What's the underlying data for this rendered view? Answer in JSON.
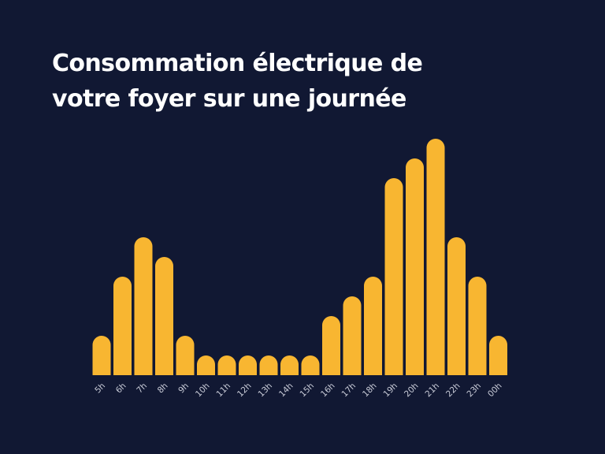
{
  "title_lines": [
    "Consommation électrique de",
    "votre foyer sur une journée"
  ],
  "colors": {
    "background": "#111833",
    "bar": "#F8B631",
    "title": "#ffffff",
    "tick_label": "#c9ccd8"
  },
  "chart_data": {
    "type": "bar",
    "title": "Consommation électrique de votre foyer sur une journée",
    "xlabel": "",
    "ylabel": "",
    "grid": false,
    "categories": [
      "5h",
      "6h",
      "7h",
      "8h",
      "9h",
      "10h",
      "11h",
      "12h",
      "13h",
      "14h",
      "15h",
      "16h",
      "17h",
      "18h",
      "19h",
      "20h",
      "21h",
      "22h",
      "23h",
      "00h"
    ],
    "values": [
      2,
      5,
      7,
      6,
      2,
      1,
      1,
      1,
      1,
      1,
      1,
      3,
      4,
      5,
      10,
      11,
      12,
      7,
      5,
      2
    ],
    "ylim": [
      0,
      12
    ]
  }
}
